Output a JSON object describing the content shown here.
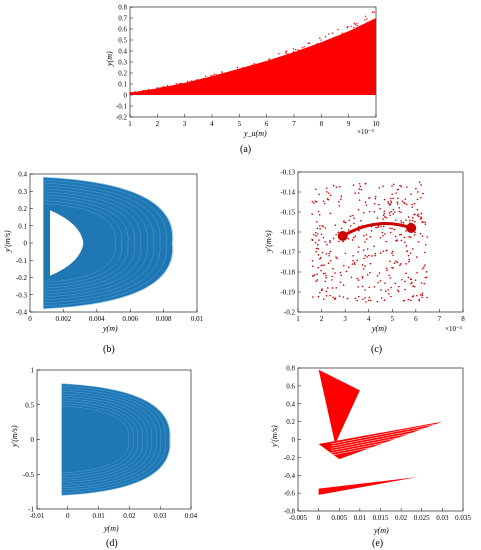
{
  "figure": {
    "captions": [
      "(a)",
      "(b)",
      "(c)",
      "(d)",
      "(e)"
    ]
  },
  "chart_data": [
    {
      "id": "a",
      "type": "scatter",
      "title": "",
      "xlabel": "y_u(m)",
      "ylabel": "y(m)",
      "x_ticks": [
        "1",
        "2",
        "3",
        "4",
        "5",
        "6",
        "7",
        "8",
        "9",
        "10"
      ],
      "y_ticks": [
        "-0.2",
        "-0.1",
        "0",
        "0.1",
        "0.2",
        "0.3",
        "0.4",
        "0.5",
        "0.6",
        "0.7",
        "0.8"
      ],
      "x_multiplier": "×10⁻³",
      "xlim": [
        1,
        10
      ],
      "ylim": [
        -0.2,
        0.8
      ],
      "color": "#ff0000",
      "envelope_top": [
        [
          1,
          0.02
        ],
        [
          2,
          0.06
        ],
        [
          3,
          0.11
        ],
        [
          4,
          0.17
        ],
        [
          5,
          0.24
        ],
        [
          6,
          0.31
        ],
        [
          7,
          0.39
        ],
        [
          8,
          0.48
        ],
        [
          9,
          0.58
        ],
        [
          10,
          0.7
        ]
      ],
      "envelope_bottom": [
        [
          1,
          0.0
        ],
        [
          10,
          0.0
        ]
      ]
    },
    {
      "id": "b",
      "type": "line",
      "title": "",
      "xlabel": "y(m)",
      "ylabel": "y'(m/s)",
      "x_ticks": [
        "0",
        "0.002",
        "0.004",
        "0.006",
        "0.008",
        "0.01"
      ],
      "y_ticks": [
        "-0.4",
        "-0.3",
        "-0.2",
        "-0.1",
        "0",
        "0.1",
        "0.2",
        "0.3",
        "0.4"
      ],
      "xlim": [
        0,
        0.01
      ],
      "ylim": [
        -0.4,
        0.4
      ],
      "color": "#1f77b4",
      "outer_loop": [
        [
          0.0008,
          0.38
        ],
        [
          0.0085,
          0.0
        ],
        [
          0.0008,
          -0.38
        ]
      ],
      "inner_hole": [
        [
          0.0012,
          0.19
        ],
        [
          0.0032,
          0.0
        ],
        [
          0.0012,
          -0.19
        ]
      ]
    },
    {
      "id": "c",
      "type": "scatter",
      "title": "",
      "xlabel": "y(m)",
      "ylabel": "y'(m/s)",
      "x_ticks": [
        "1",
        "2",
        "3",
        "4",
        "5",
        "6",
        "7",
        "8"
      ],
      "y_ticks": [
        "-0.2",
        "-0.19",
        "-0.18",
        "-0.17",
        "-0.16",
        "-0.15",
        "-0.14",
        "-0.13"
      ],
      "x_multiplier": "×10⁻³",
      "xlim": [
        1,
        8
      ],
      "ylim": [
        -0.2,
        -0.13
      ],
      "color": "#cc0000",
      "clusters": [
        [
          2.9,
          -0.162
        ],
        [
          5.8,
          -0.158
        ]
      ]
    },
    {
      "id": "d",
      "type": "line",
      "title": "",
      "xlabel": "y(m)",
      "ylabel": "y'(m/s)",
      "x_ticks": [
        "-0.01",
        "0",
        "0.01",
        "0.02",
        "0.03",
        "0.04"
      ],
      "y_ticks": [
        "-1",
        "-0.5",
        "0",
        "0.5",
        "1"
      ],
      "xlim": [
        -0.01,
        0.04
      ],
      "ylim": [
        -1,
        1
      ],
      "color": "#1f77b4",
      "outer_loop": [
        [
          -0.002,
          0.8
        ],
        [
          0.033,
          0.0
        ],
        [
          -0.002,
          -0.8
        ]
      ]
    },
    {
      "id": "e",
      "type": "scatter",
      "title": "",
      "xlabel": "y(m)",
      "ylabel": "y'(m/s)",
      "x_ticks": [
        "-0.005",
        "0",
        "0.005",
        "0.01",
        "0.015",
        "0.02",
        "0.025",
        "0.03",
        "0.035"
      ],
      "y_ticks": [
        "-0.8",
        "-0.6",
        "-0.4",
        "-0.2",
        "0",
        "0.2",
        "0.4",
        "0.6",
        "0.8"
      ],
      "xlim": [
        -0.005,
        0.035
      ],
      "ylim": [
        -0.8,
        0.8
      ],
      "color": "#ff0000",
      "bands": [
        [
          [
            0.0,
            0.78
          ],
          [
            0.01,
            0.55
          ],
          [
            0.004,
            -0.05
          ]
        ],
        [
          [
            0.0,
            -0.05
          ],
          [
            0.03,
            0.2
          ],
          [
            0.005,
            -0.22
          ]
        ],
        [
          [
            0.0,
            -0.55
          ],
          [
            0.024,
            -0.42
          ],
          [
            0.0,
            -0.62
          ]
        ]
      ]
    }
  ]
}
